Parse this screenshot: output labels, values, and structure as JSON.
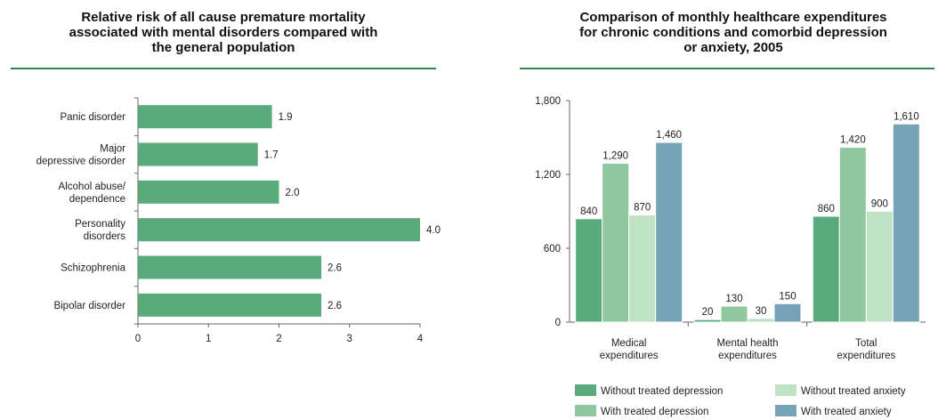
{
  "chart_data": [
    {
      "type": "bar",
      "orientation": "horizontal",
      "title_lines": [
        "Relative risk of all cause premature mortality",
        "associated with mental disorders compared with",
        "the general population"
      ],
      "categories": [
        [
          "Panic disorder"
        ],
        [
          "Major",
          "depressive disorder"
        ],
        [
          "Alcohol abuse/",
          "dependence"
        ],
        [
          "Personality",
          "disorders"
        ],
        [
          "Schizophrenia"
        ],
        [
          "Bipolar disorder"
        ]
      ],
      "values": [
        1.9,
        1.7,
        2.0,
        4.0,
        2.6,
        2.6
      ],
      "value_labels": [
        "1.9",
        "1.7",
        "2.0",
        "4.0",
        "2.6",
        "2.6"
      ],
      "xlim": [
        0,
        4
      ],
      "x_ticks": [
        "0",
        "1",
        "2",
        "3",
        "4"
      ],
      "bar_color": "#5aab7c",
      "grid": false
    },
    {
      "type": "bar",
      "orientation": "vertical",
      "title_lines": [
        "Comparison of monthly healthcare expenditures",
        "for chronic conditions and comorbid depression",
        "or anxiety, 2005"
      ],
      "categories": [
        [
          "Medical",
          "expenditures"
        ],
        [
          "Mental health",
          "expenditures"
        ],
        [
          "Total",
          "expenditures"
        ]
      ],
      "series": [
        {
          "name": "Without treated depression",
          "color": "#5aab7c",
          "values": [
            840,
            20,
            860
          ],
          "labels": [
            "840",
            "20",
            "860"
          ]
        },
        {
          "name": "With treated depression",
          "color": "#8fc89e",
          "values": [
            1290,
            130,
            1420
          ],
          "labels": [
            "1,290",
            "130",
            "1,420"
          ]
        },
        {
          "name": "Without treated anxiety",
          "color": "#bfe1c4",
          "values": [
            870,
            30,
            900
          ],
          "labels": [
            "870",
            "30",
            "900"
          ]
        },
        {
          "name": "With treated anxiety",
          "color": "#77a3b7",
          "values": [
            1460,
            150,
            1610
          ],
          "labels": [
            "1,460",
            "150",
            "1,610"
          ]
        }
      ],
      "ylim": [
        0,
        1800
      ],
      "y_ticks": [
        {
          "value": 0,
          "label": "0"
        },
        {
          "value": 600,
          "label": "600"
        },
        {
          "value": 1200,
          "label": "1,200"
        },
        {
          "value": 1800,
          "label": "1,800"
        }
      ],
      "legend_position": "bottom-right",
      "grid": false
    }
  ],
  "colors": {
    "title_rule": "#2f8a4f",
    "axis": "#666666"
  }
}
